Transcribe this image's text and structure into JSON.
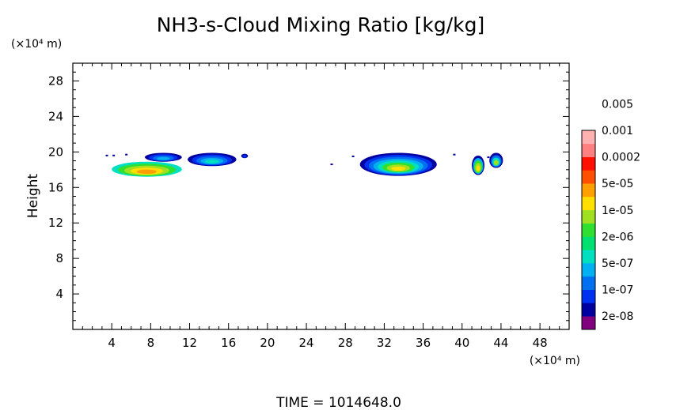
{
  "chart_data": {
    "type": "heatmap",
    "title": "NH3-s-Cloud Mixing Ratio [kg/kg]",
    "ylabel": "Height",
    "x_unit_label": "(×10⁴ m)",
    "y_unit_label": "(×10⁴ m)",
    "footer": "TIME = 1014648.0",
    "xlim": [
      0,
      51
    ],
    "ylim": [
      0,
      30
    ],
    "xticks": [
      4,
      8,
      12,
      16,
      20,
      24,
      28,
      32,
      36,
      40,
      44,
      48
    ],
    "xtick_labels": [
      "4",
      "8",
      "12",
      "16",
      "20",
      "24",
      "28",
      "32",
      "36",
      "40",
      "44",
      "48"
    ],
    "yticks": [
      4,
      8,
      12,
      16,
      20,
      24,
      28
    ],
    "ytick_labels": [
      "4",
      "8",
      "12",
      "16",
      "20",
      "24",
      "28"
    ],
    "colorbar": {
      "colors": [
        "#800080",
        "#0000a0",
        "#0030f0",
        "#0070f0",
        "#00b0f0",
        "#00e0c0",
        "#00e070",
        "#30e030",
        "#a0e020",
        "#ffe000",
        "#ffa000",
        "#ff5000",
        "#ff1000",
        "#ff8080",
        "#ffb0b0"
      ],
      "labels": [
        "2e-08",
        "1e-07",
        "5e-07",
        "2e-06",
        "1e-05",
        "5e-05",
        "0.0002",
        "0.001",
        "0.005"
      ]
    },
    "clouds": [
      {
        "name": "cloud-a-upper",
        "x": [
          7.4,
          11.2
        ],
        "y": [
          18.9,
          19.9
        ],
        "levels": [
          "#0000a0",
          "#0030f0",
          "#0070f0",
          "#00b0f0"
        ]
      },
      {
        "name": "cloud-a-lower",
        "x": [
          4.0,
          11.2
        ],
        "y": [
          17.2,
          18.9
        ],
        "levels": [
          "#00e0c0",
          "#30e030",
          "#a0e020",
          "#ffe000",
          "#ffa000"
        ]
      },
      {
        "name": "cloud-b",
        "x": [
          11.8,
          16.8
        ],
        "y": [
          18.4,
          19.9
        ],
        "levels": [
          "#0000a0",
          "#0030f0",
          "#0070f0",
          "#00b0f0",
          "#00e0c0"
        ]
      },
      {
        "name": "cloud-b-tail",
        "x": [
          17.3,
          18.0
        ],
        "y": [
          19.3,
          19.8
        ],
        "levels": [
          "#0000a0",
          "#0030f0"
        ]
      },
      {
        "name": "cloud-c",
        "x": [
          29.5,
          37.4
        ],
        "y": [
          17.3,
          19.9
        ],
        "levels": [
          "#0000a0",
          "#0030f0",
          "#0070f0",
          "#00b0f0",
          "#00e0c0",
          "#30e030",
          "#a0e020",
          "#ffe000"
        ]
      },
      {
        "name": "cloud-d-left",
        "x": [
          41.0,
          42.3
        ],
        "y": [
          17.4,
          19.6
        ],
        "levels": [
          "#0000a0",
          "#00b0f0",
          "#30e030",
          "#a0e020",
          "#ffe000"
        ]
      },
      {
        "name": "cloud-d-right",
        "x": [
          42.8,
          44.2
        ],
        "y": [
          18.2,
          19.9
        ],
        "levels": [
          "#0000a0",
          "#0070f0",
          "#00e0c0",
          "#a0e020"
        ]
      }
    ],
    "specks": [
      {
        "x": 3.5,
        "y": 19.6
      },
      {
        "x": 4.2,
        "y": 19.6
      },
      {
        "x": 5.5,
        "y": 19.7
      },
      {
        "x": 26.6,
        "y": 18.6
      },
      {
        "x": 28.8,
        "y": 19.5
      },
      {
        "x": 39.2,
        "y": 19.7
      },
      {
        "x": 42.7,
        "y": 19.4
      }
    ]
  }
}
